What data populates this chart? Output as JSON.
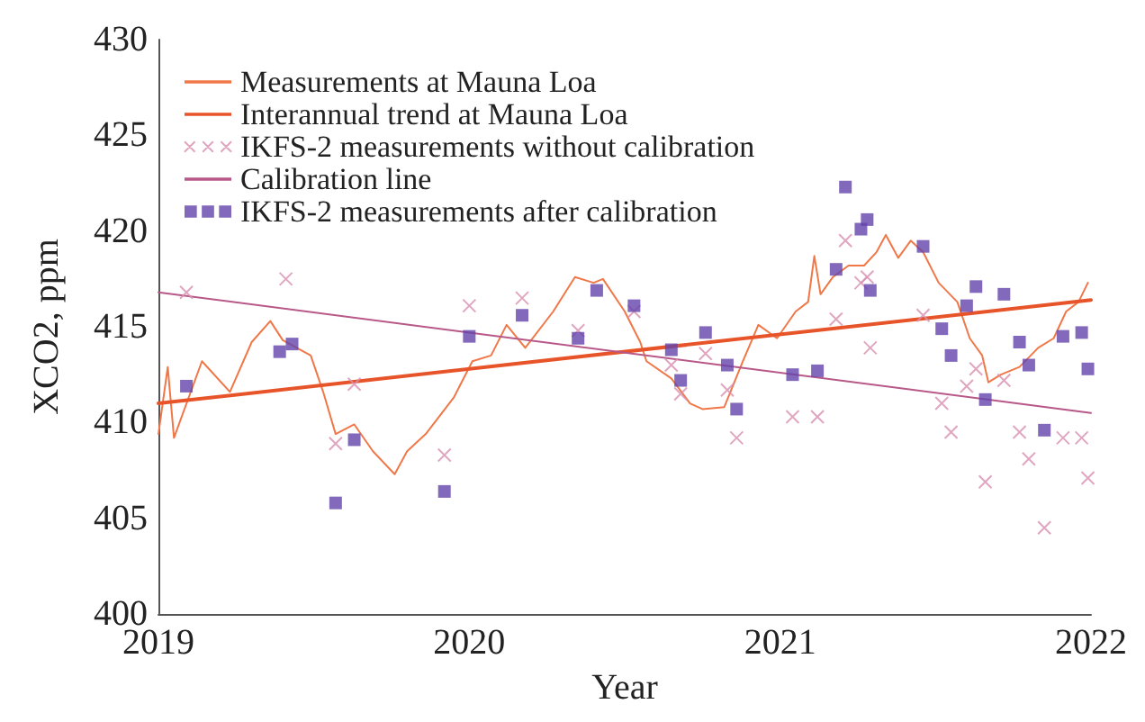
{
  "chart_data": {
    "type": "line",
    "xlabel": "Year",
    "ylabel": "XCO2, ppm",
    "xlim": [
      2019,
      2022
    ],
    "xticks": [
      2019,
      2020,
      2021,
      2022
    ],
    "ylim": [
      400,
      430
    ],
    "yticks": [
      400,
      405,
      410,
      415,
      420,
      425,
      430
    ],
    "grid": false,
    "legend": "top left",
    "series": [
      {
        "name": "Measurements at Mauna Loa",
        "color": "#f07848",
        "marker": "none",
        "line_style": "solid",
        "x": [
          2019.0,
          2019.03,
          2019.05,
          2019.14,
          2019.23,
          2019.3,
          2019.36,
          2019.4,
          2019.49,
          2019.53,
          2019.57,
          2019.63,
          2019.69,
          2019.76,
          2019.8,
          2019.86,
          2019.95,
          2020.01,
          2020.07,
          2020.12,
          2020.18,
          2020.27,
          2020.34,
          2020.4,
          2020.43,
          2020.5,
          2020.55,
          2020.57,
          2020.65,
          2020.71,
          2020.75,
          2020.82,
          2020.84,
          2020.88,
          2020.93,
          2020.99,
          2021.05,
          2021.09,
          2021.11,
          2021.13,
          2021.17,
          2021.22,
          2021.27,
          2021.31,
          2021.34,
          2021.38,
          2021.42,
          2021.46,
          2021.51,
          2021.57,
          2021.61,
          2021.65,
          2021.67,
          2021.71,
          2021.77,
          2021.83,
          2021.88,
          2021.92,
          2021.96,
          2021.99
        ],
        "values": [
          409.4,
          412.9,
          409.2,
          413.2,
          411.6,
          414.2,
          415.3,
          414.3,
          413.5,
          411.6,
          409.4,
          409.9,
          408.5,
          407.3,
          408.5,
          409.4,
          411.3,
          413.2,
          413.5,
          415.1,
          413.9,
          415.8,
          417.6,
          417.3,
          417.5,
          415.8,
          414.2,
          413.2,
          412.3,
          411.0,
          410.7,
          410.8,
          411.6,
          413.2,
          415.1,
          414.4,
          415.8,
          416.3,
          418.7,
          416.7,
          417.6,
          418.2,
          418.2,
          418.9,
          419.8,
          418.6,
          419.5,
          418.9,
          417.3,
          416.3,
          414.4,
          413.5,
          412.1,
          412.5,
          412.9,
          413.9,
          414.4,
          415.8,
          416.3,
          417.3
        ]
      },
      {
        "name": "Interannual trend at Mauna Loa",
        "color": "#e8542a",
        "marker": "none",
        "line_style": "solid",
        "x": [
          2019,
          2022
        ],
        "values": [
          411.0,
          416.4
        ]
      },
      {
        "name": "IKFS-2 measurements without calibration",
        "type": "scatter",
        "color": "#d890b0",
        "marker": "cross",
        "x": [
          2019.09,
          2019.41,
          2019.57,
          2019.63,
          2019.92,
          2020.0,
          2020.17,
          2020.35,
          2020.53,
          2020.65,
          2020.68,
          2020.76,
          2020.83,
          2020.86,
          2021.04,
          2021.12,
          2021.18,
          2021.21,
          2021.26,
          2021.28,
          2021.29,
          2021.46,
          2021.52,
          2021.55,
          2021.6,
          2021.63,
          2021.66,
          2021.72,
          2021.77,
          2021.8,
          2021.85,
          2021.91,
          2021.97,
          2021.99
        ],
        "values": [
          416.8,
          417.5,
          408.9,
          412.0,
          408.3,
          416.1,
          416.5,
          414.8,
          415.8,
          413.0,
          411.5,
          413.6,
          411.7,
          409.2,
          410.3,
          410.3,
          415.4,
          419.5,
          417.3,
          417.6,
          413.9,
          415.6,
          411.0,
          409.5,
          411.9,
          412.8,
          406.9,
          412.2,
          409.5,
          408.1,
          404.5,
          409.2,
          409.2,
          407.1
        ]
      },
      {
        "name": "Calibration line",
        "color": "#b85888",
        "marker": "none",
        "line_style": "solid",
        "x": [
          2019,
          2022
        ],
        "values": [
          416.8,
          410.5
        ]
      },
      {
        "name": "IKFS-2 measurements after calibration",
        "type": "scatter",
        "color": "#6444aa",
        "marker": "square",
        "x": [
          2019.09,
          2019.39,
          2019.43,
          2019.57,
          2019.63,
          2019.92,
          2020.0,
          2020.17,
          2020.35,
          2020.41,
          2020.53,
          2020.65,
          2020.68,
          2020.76,
          2020.83,
          2020.86,
          2021.04,
          2021.12,
          2021.18,
          2021.21,
          2021.26,
          2021.28,
          2021.29,
          2021.46,
          2021.52,
          2021.55,
          2021.6,
          2021.63,
          2021.66,
          2021.72,
          2021.77,
          2021.8,
          2021.85,
          2021.91,
          2021.97,
          2021.99
        ],
        "values": [
          411.9,
          413.7,
          414.1,
          405.8,
          409.1,
          406.4,
          414.5,
          415.6,
          414.4,
          416.9,
          416.1,
          413.8,
          412.2,
          414.7,
          413.0,
          410.7,
          412.5,
          412.7,
          418.0,
          422.3,
          420.1,
          420.6,
          416.9,
          419.2,
          414.9,
          413.5,
          416.1,
          417.1,
          411.2,
          416.7,
          414.2,
          413.0,
          409.6,
          414.5,
          414.7,
          412.8
        ]
      }
    ]
  }
}
